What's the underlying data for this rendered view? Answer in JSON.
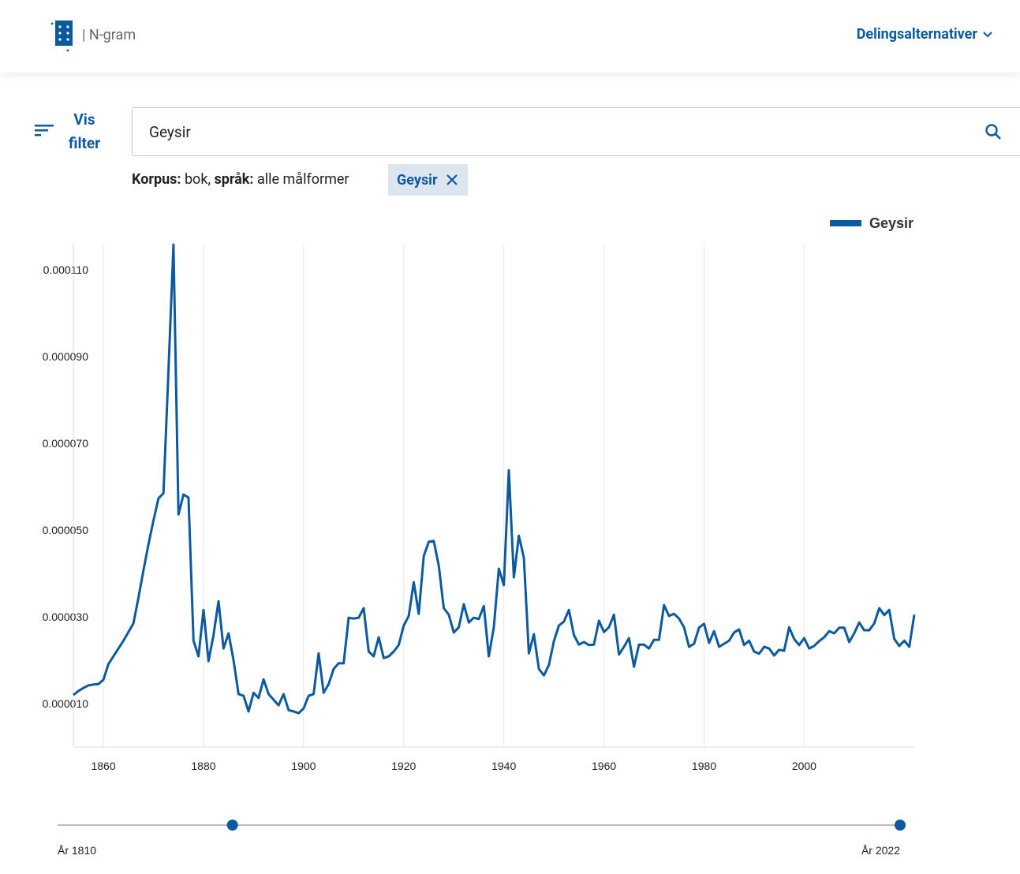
{
  "header": {
    "logo_text": "| N-gram",
    "share_menu": "Delingsalternativer"
  },
  "filter_button": "Vis filter",
  "search": {
    "query": "Geysir"
  },
  "corpus_info": {
    "corpus_label": "Korpus:",
    "corpus": "bok,",
    "language_label": "språk:",
    "language": "alle målformer"
  },
  "chips": [
    "Geysir"
  ],
  "chart_data": {
    "type": "line",
    "x": [
      1854,
      1855,
      1856,
      1857,
      1858,
      1859,
      1860,
      1861,
      1862,
      1863,
      1864,
      1865,
      1866,
      1867,
      1868,
      1869,
      1870,
      1871,
      1872,
      1873,
      1874,
      1875,
      1876,
      1877,
      1878,
      1879,
      1880,
      1881,
      1882,
      1883,
      1884,
      1885,
      1886,
      1887,
      1888,
      1889,
      1890,
      1891,
      1892,
      1893,
      1894,
      1895,
      1896,
      1897,
      1898,
      1899,
      1900,
      1901,
      1902,
      1903,
      1904,
      1905,
      1906,
      1907,
      1908,
      1909,
      1910,
      1911,
      1912,
      1913,
      1914,
      1915,
      1916,
      1917,
      1918,
      1919,
      1920,
      1921,
      1922,
      1923,
      1924,
      1925,
      1926,
      1927,
      1928,
      1929,
      1930,
      1931,
      1932,
      1933,
      1934,
      1935,
      1936,
      1937,
      1938,
      1939,
      1940,
      1941,
      1942,
      1943,
      1944,
      1945,
      1946,
      1947,
      1948,
      1949,
      1950,
      1951,
      1952,
      1953,
      1954,
      1955,
      1956,
      1957,
      1958,
      1959,
      1960,
      1961,
      1962,
      1963,
      1964,
      1965,
      1966,
      1967,
      1968,
      1969,
      1970,
      1971,
      1972,
      1973,
      1974,
      1975,
      1976,
      1977,
      1978,
      1979,
      1980,
      1981,
      1982,
      1983,
      1984,
      1985,
      1986,
      1987,
      1988,
      1989,
      1990,
      1991,
      1992,
      1993,
      1994,
      1995,
      1996,
      1997,
      1998,
      1999,
      2000,
      2001,
      2002,
      2003,
      2004,
      2005,
      2006,
      2007,
      2008,
      2009,
      2010,
      2011,
      2012,
      2013,
      2014,
      2015,
      2016,
      2017,
      2018,
      2019,
      2020,
      2021,
      2022
    ],
    "series": [
      {
        "name": "Geysir",
        "color": "#0b5aa1",
        "values": [
          1.2e-05,
          1.29e-05,
          1.36e-05,
          1.42e-05,
          1.44e-05,
          1.45e-05,
          1.55e-05,
          1.91e-05,
          2.09e-05,
          2.27e-05,
          2.45e-05,
          2.65e-05,
          2.85e-05,
          3.44e-05,
          4.07e-05,
          4.67e-05,
          5.22e-05,
          5.73e-05,
          5.85e-05,
          8.67e-05,
          0.0001158,
          5.36e-05,
          5.82e-05,
          5.75e-05,
          2.45e-05,
          2.09e-05,
          3.16e-05,
          1.98e-05,
          2.58e-05,
          3.36e-05,
          2.27e-05,
          2.62e-05,
          2e-05,
          1.22e-05,
          1.18e-05,
          8.2e-06,
          1.25e-05,
          1.13e-05,
          1.56e-05,
          1.22e-05,
          1.09e-05,
          9.6e-06,
          1.22e-05,
          8.5e-06,
          8.2e-06,
          7.8e-06,
          8.9e-06,
          1.18e-05,
          1.22e-05,
          2.16e-05,
          1.25e-05,
          1.45e-05,
          1.8e-05,
          1.93e-05,
          1.93e-05,
          2.98e-05,
          2.96e-05,
          2.98e-05,
          3.2e-05,
          2.2e-05,
          2.09e-05,
          2.53e-05,
          2.05e-05,
          2.09e-05,
          2.2e-05,
          2.35e-05,
          2.8e-05,
          3.02e-05,
          3.8e-05,
          3.07e-05,
          4.4e-05,
          4.73e-05,
          4.75e-05,
          4.18e-05,
          3.2e-05,
          3.05e-05,
          2.64e-05,
          2.76e-05,
          3.29e-05,
          2.87e-05,
          2.98e-05,
          2.95e-05,
          3.25e-05,
          2.09e-05,
          2.76e-05,
          4.11e-05,
          3.73e-05,
          6.38e-05,
          3.91e-05,
          4.87e-05,
          4.36e-05,
          2.16e-05,
          2.6e-05,
          1.8e-05,
          1.65e-05,
          1.89e-05,
          2.44e-05,
          2.8e-05,
          2.89e-05,
          3.16e-05,
          2.58e-05,
          2.36e-05,
          2.42e-05,
          2.35e-05,
          2.36e-05,
          2.91e-05,
          2.65e-05,
          2.76e-05,
          3.05e-05,
          2.13e-05,
          2.31e-05,
          2.51e-05,
          1.85e-05,
          2.36e-05,
          2.36e-05,
          2.27e-05,
          2.47e-05,
          2.47e-05,
          3.27e-05,
          3.02e-05,
          3.07e-05,
          2.96e-05,
          2.76e-05,
          2.31e-05,
          2.38e-05,
          2.75e-05,
          2.84e-05,
          2.4e-05,
          2.67e-05,
          2.31e-05,
          2.38e-05,
          2.45e-05,
          2.64e-05,
          2.71e-05,
          2.35e-05,
          2.45e-05,
          2.2e-05,
          2.15e-05,
          2.31e-05,
          2.27e-05,
          2.11e-05,
          2.24e-05,
          2.22e-05,
          2.76e-05,
          2.49e-05,
          2.35e-05,
          2.51e-05,
          2.27e-05,
          2.33e-05,
          2.44e-05,
          2.53e-05,
          2.67e-05,
          2.62e-05,
          2.75e-05,
          2.75e-05,
          2.42e-05,
          2.62e-05,
          2.87e-05,
          2.69e-05,
          2.69e-05,
          2.85e-05,
          3.2e-05,
          3.04e-05,
          3.16e-05,
          2.49e-05,
          2.33e-05,
          2.45e-05,
          2.31e-05,
          3.05e-05
        ]
      }
    ],
    "xlim": [
      1854,
      2022
    ],
    "xticks": [
      1860,
      1880,
      1900,
      1920,
      1940,
      1960,
      1980,
      2000
    ],
    "ylim": [
      0,
      0.000116
    ],
    "yticks": [
      {
        "value": 1e-05,
        "label": "0.000010"
      },
      {
        "value": 3e-05,
        "label": "0.000030"
      },
      {
        "value": 5e-05,
        "label": "0.000050"
      },
      {
        "value": 7e-05,
        "label": "0.000070"
      },
      {
        "value": 9e-05,
        "label": "0.000090"
      },
      {
        "value": 0.00011,
        "label": "0.000110"
      }
    ],
    "grid": true,
    "legend": "top-right"
  },
  "slider": {
    "range": [
      1810,
      2022
    ],
    "selected": [
      1854,
      2022
    ],
    "min_label": "År 1810",
    "max_label": "År 2022"
  }
}
